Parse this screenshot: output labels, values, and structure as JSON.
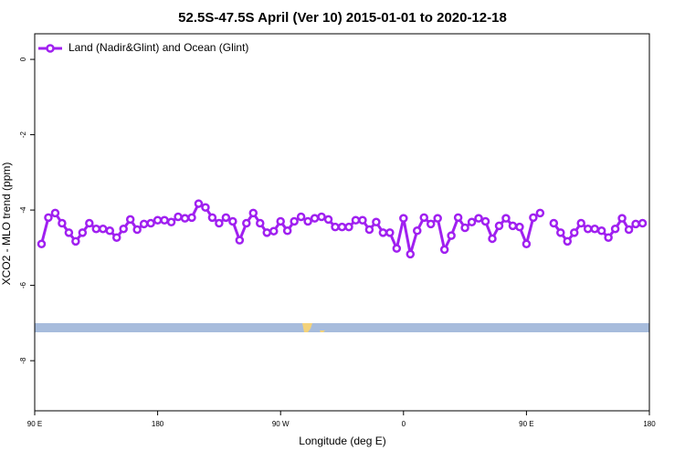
{
  "chart_data": {
    "type": "line",
    "title": "52.5S-47.5S April (Ver 10)   2015-01-01 to 2020-12-18",
    "xlabel": "Longitude (deg E)",
    "ylabel": "XCO2 - MLO trend (ppm)",
    "xlim": [
      90,
      540
    ],
    "ylim": [
      -9.33,
      0.68
    ],
    "xticks": [
      {
        "value": 90,
        "label": "90 E"
      },
      180,
      {
        "value": 270,
        "label": "90 W"
      },
      {
        "value": 360,
        "label": "0"
      },
      {
        "value": 450,
        "label": "90 E"
      },
      {
        "value": 540,
        "label": "180"
      }
    ],
    "yticks": [
      0,
      -2,
      -4,
      -6,
      -8
    ],
    "legend": "top-left",
    "x": [
      95,
      100,
      105,
      110,
      115,
      120,
      125,
      130,
      135,
      140,
      145,
      150,
      155,
      160,
      165,
      170,
      175,
      180,
      185,
      190,
      195,
      200,
      205,
      210,
      215,
      220,
      225,
      230,
      235,
      240,
      245,
      250,
      255,
      260,
      265,
      270,
      275,
      280,
      285,
      290,
      295,
      300,
      305,
      310,
      315,
      320,
      325,
      330,
      335,
      340,
      345,
      350,
      355,
      360,
      365,
      370,
      375,
      380,
      385,
      390,
      395,
      400,
      405,
      410,
      415,
      420,
      425,
      430,
      435,
      440,
      445,
      450,
      455,
      460,
      465,
      470,
      475,
      480,
      485,
      490,
      495,
      500,
      505,
      510,
      515,
      520,
      525,
      530,
      535
    ],
    "series": [
      {
        "name": "Land (Nadir&Glint) and Ocean (Glint)",
        "color": "#a020f0",
        "values": [
          -4.9,
          -4.2,
          -4.08,
          -4.35,
          -4.6,
          -4.83,
          -4.6,
          -4.35,
          -4.5,
          -4.5,
          -4.55,
          -4.73,
          -4.5,
          -4.25,
          -4.52,
          -4.37,
          -4.35,
          -4.27,
          -4.27,
          -4.32,
          -4.18,
          -4.22,
          -4.2,
          -3.83,
          -3.93,
          -4.2,
          -4.35,
          -4.2,
          -4.3,
          -4.8,
          -4.35,
          -4.08,
          -4.35,
          -4.6,
          -4.56,
          -4.3,
          -4.55,
          -4.3,
          -4.18,
          -4.3,
          -4.22,
          -4.18,
          -4.25,
          -4.45,
          -4.45,
          -4.45,
          -4.27,
          -4.27,
          -4.52,
          -4.32,
          -4.6,
          -4.6,
          -5.02,
          -4.22,
          -5.17,
          -4.55,
          -4.2,
          -4.37,
          -4.22,
          -5.05,
          -4.68,
          -4.2,
          -4.47,
          -4.32,
          -4.22,
          -4.3,
          -4.76,
          -4.42,
          -4.22,
          -4.42,
          -4.45,
          -4.9,
          -4.2,
          -4.08,
          null,
          -4.35,
          -4.6,
          -4.83,
          -4.6,
          -4.35,
          -4.5,
          -4.5,
          -4.55,
          -4.73,
          -4.5,
          -4.22,
          -4.52,
          -4.37,
          -4.35
        ]
      }
    ]
  }
}
